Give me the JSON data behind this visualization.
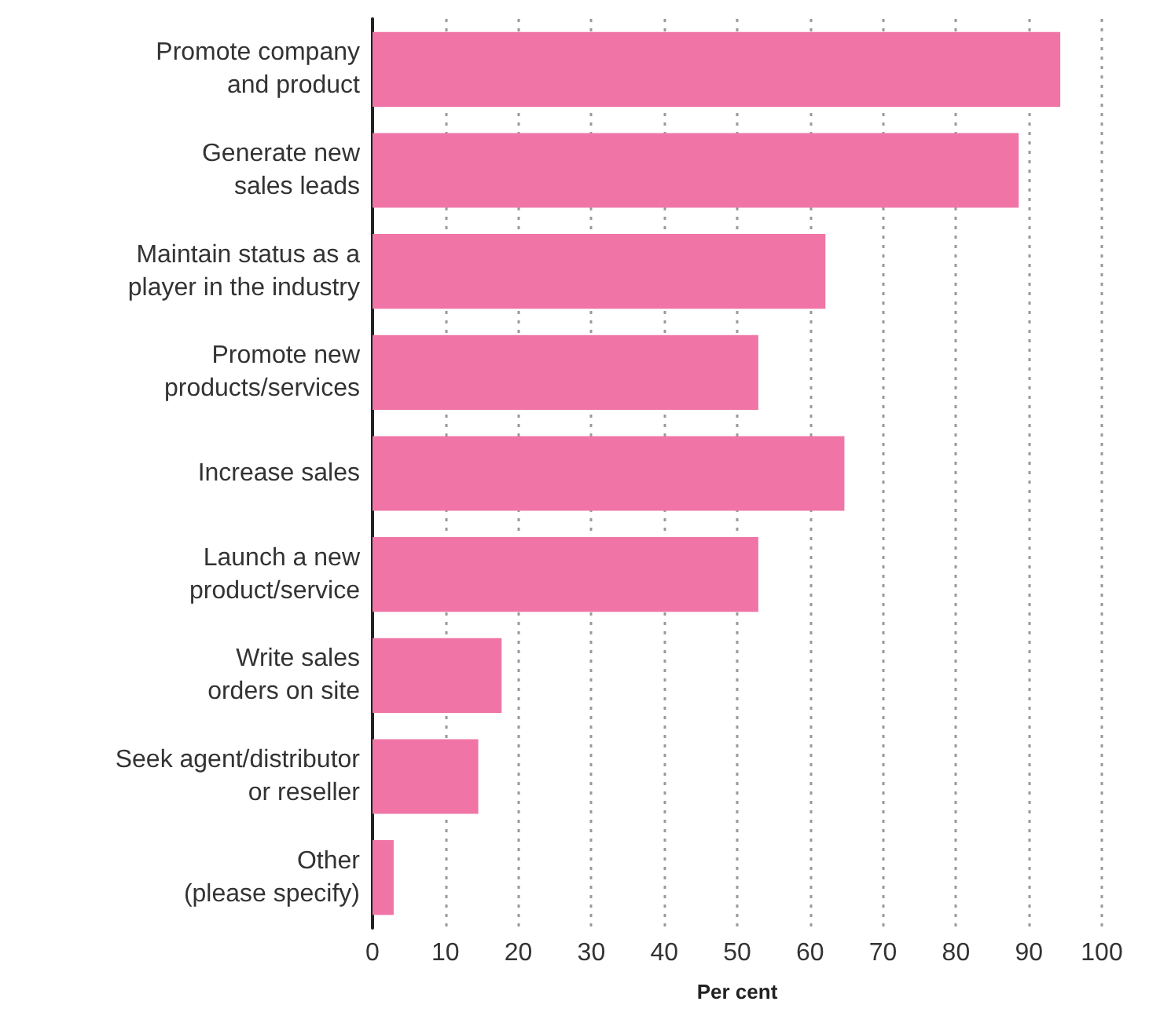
{
  "chart_data": {
    "type": "bar",
    "orientation": "horizontal",
    "xlabel": "Per cent",
    "categories": [
      "Promote company\nand product",
      "Generate new\nsales leads",
      "Maintain status as a\nplayer in the industry",
      "Promote new\nproducts/services",
      "Increase sales",
      "Launch a new\nproduct/service",
      "Write sales\norders on site",
      "Seek agent/distributor\nor reseller",
      "Other\n(please specify)"
    ],
    "values": [
      94.3,
      88.6,
      62.1,
      52.9,
      64.7,
      52.9,
      17.7,
      14.5,
      2.9
    ],
    "color": "#f075a6",
    "xlim": [
      0,
      100
    ],
    "xticks": [
      0,
      10,
      20,
      30,
      40,
      50,
      60,
      70,
      80,
      90,
      100
    ],
    "grid": "x"
  }
}
